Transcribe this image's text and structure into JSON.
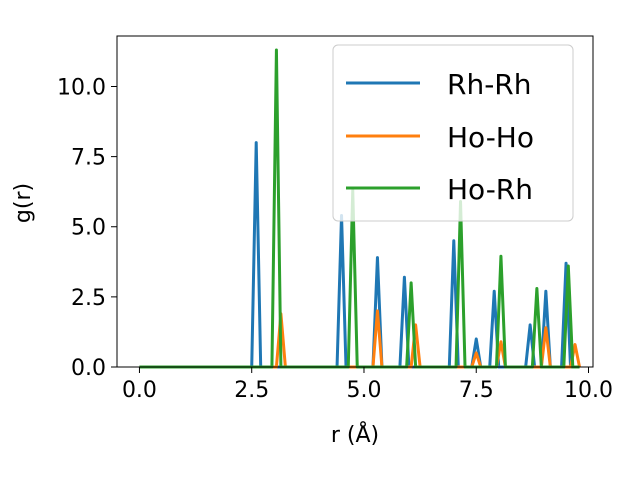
{
  "chart_data": {
    "type": "line",
    "title": "",
    "xlabel": "r (Å)",
    "ylabel": "g(r)",
    "xlim": [
      -0.5,
      10.1
    ],
    "ylim": [
      0,
      11.8
    ],
    "xticks": [
      0.0,
      2.5,
      5.0,
      7.5,
      10.0
    ],
    "xtick_labels": [
      "0.0",
      "2.5",
      "5.0",
      "7.5",
      "10.0"
    ],
    "yticks": [
      0.0,
      2.5,
      5.0,
      7.5,
      10.0
    ],
    "ytick_labels": [
      "0.0",
      "2.5",
      "5.0",
      "7.5",
      "10.0"
    ],
    "grid": false,
    "legend_position": "upper-right",
    "series": [
      {
        "name": "Rh-Rh",
        "color": "#1f77b4",
        "x": [
          0.0,
          2.5,
          2.6,
          2.7,
          4.4,
          4.5,
          4.6,
          5.2,
          5.3,
          5.4,
          5.8,
          5.9,
          6.0,
          6.9,
          7.0,
          7.1,
          7.4,
          7.5,
          7.6,
          7.8,
          7.9,
          8.0,
          8.6,
          8.7,
          8.8,
          8.95,
          9.05,
          9.15,
          9.4,
          9.5,
          9.6,
          9.8
        ],
        "y": [
          0.0,
          0.0,
          8.0,
          0.0,
          0.0,
          5.4,
          0.0,
          0.0,
          3.9,
          0.0,
          0.0,
          3.2,
          0.0,
          0.0,
          4.5,
          0.0,
          0.0,
          1.0,
          0.0,
          0.0,
          2.7,
          0.0,
          0.0,
          1.5,
          0.0,
          0.0,
          2.7,
          0.0,
          0.0,
          3.7,
          0.0,
          0.0
        ]
      },
      {
        "name": "Ho-Ho",
        "color": "#ff7f0e",
        "x": [
          0.0,
          3.05,
          3.15,
          3.25,
          5.2,
          5.3,
          5.4,
          6.05,
          6.15,
          6.25,
          7.4,
          7.5,
          7.6,
          7.95,
          8.05,
          8.15,
          8.95,
          9.05,
          9.15,
          9.6,
          9.7,
          9.8
        ],
        "y": [
          0.0,
          0.0,
          1.9,
          0.0,
          0.0,
          2.0,
          0.0,
          0.0,
          1.5,
          0.0,
          0.0,
          0.5,
          0.0,
          0.0,
          0.9,
          0.0,
          0.0,
          1.4,
          0.0,
          0.0,
          0.8,
          0.0
        ]
      },
      {
        "name": "Ho-Rh",
        "color": "#2ca02c",
        "x": [
          0.0,
          2.95,
          3.05,
          3.15,
          4.65,
          4.75,
          4.85,
          5.95,
          6.05,
          6.15,
          7.05,
          7.15,
          7.25,
          7.95,
          8.05,
          8.15,
          8.75,
          8.85,
          8.95,
          9.45,
          9.55,
          9.65,
          9.8
        ],
        "y": [
          0.0,
          0.0,
          11.3,
          0.0,
          0.0,
          6.3,
          0.0,
          0.0,
          3.0,
          0.0,
          0.0,
          5.9,
          0.0,
          0.0,
          3.95,
          0.0,
          0.0,
          2.8,
          0.0,
          0.0,
          3.6,
          0.0,
          0.0
        ]
      }
    ]
  }
}
